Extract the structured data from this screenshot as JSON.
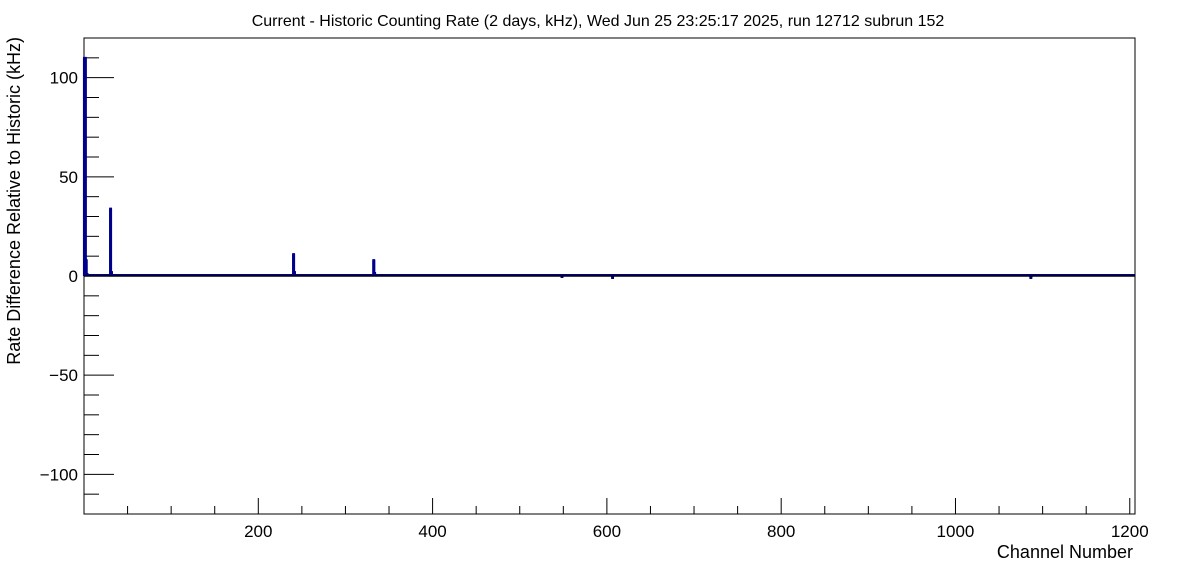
{
  "chart_data": {
    "type": "bar",
    "title": "Current - Historic Counting Rate (2 days, kHz), Wed Jun 25 23:25:17 2025, run 12712 subrun 152",
    "xlabel": "Channel Number",
    "ylabel": "Rate Difference Relative to Historic (kHz)",
    "xlim": [
      0,
      1206
    ],
    "ylim": [
      -120,
      120
    ],
    "x_ticks": [
      200,
      400,
      600,
      800,
      1000,
      1200
    ],
    "y_ticks": [
      -100,
      -50,
      0,
      50,
      100
    ],
    "x_tick_labels": [
      "200",
      "400",
      "600",
      "800",
      "1000",
      "1200"
    ],
    "y_tick_labels": [
      "−100",
      "−50",
      "0",
      "50",
      "100"
    ],
    "grid": false,
    "legend": "none",
    "line_color": "#00008b",
    "baseline_value": 0.5,
    "spikes": [
      {
        "x": 0,
        "y": 110
      },
      {
        "x": 1,
        "y": 110
      },
      {
        "x": 2,
        "y": 8
      },
      {
        "x": 3,
        "y": 1
      },
      {
        "x": 30,
        "y": 34
      },
      {
        "x": 31,
        "y": 2
      },
      {
        "x": 240,
        "y": 11
      },
      {
        "x": 241,
        "y": 2
      },
      {
        "x": 332,
        "y": 8
      },
      {
        "x": 333,
        "y": 1.5
      },
      {
        "x": 548,
        "y": -0.5
      },
      {
        "x": 606,
        "y": -1
      },
      {
        "x": 1086,
        "y": -1
      }
    ]
  }
}
